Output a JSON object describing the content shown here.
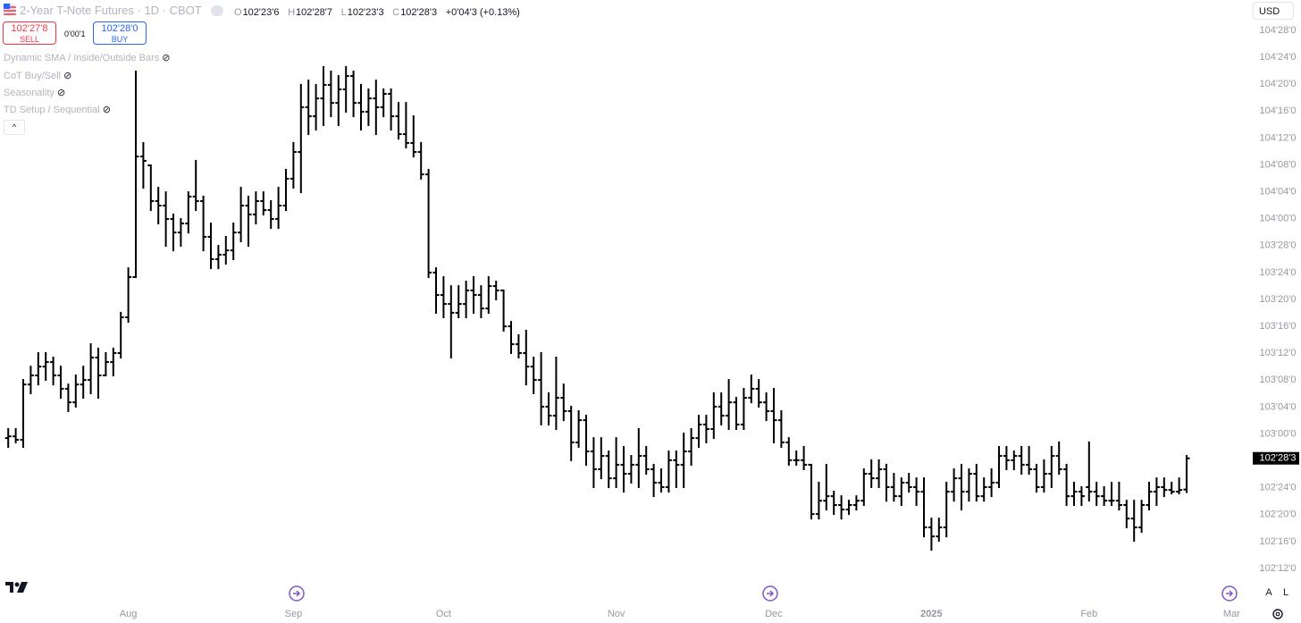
{
  "header": {
    "symbol": "2-Year T-Note Futures · 1D · CBOT",
    "ohlc": [
      [
        "O",
        "102'23'6"
      ],
      [
        "H",
        "102'28'7"
      ],
      [
        "L",
        "102'23'3"
      ],
      [
        "C",
        "102'28'3"
      ]
    ],
    "change": "+0'04'3 (+0.13%)",
    "sell_price": "102'27'8",
    "sell": "SELL",
    "spread": "0'00'1",
    "buy_price": "102'28'0",
    "buy": "BUY",
    "indicators": [
      "Dynamic SMA / Inside/Outside Bars",
      "CoT Buy/Sell",
      "Seasonality",
      "TD Setup / Sequential"
    ],
    "currency": "USD",
    "auto": "A",
    "log": "L"
  },
  "chart_data": {
    "type": "ohlc",
    "color": "#000000",
    "grid": false,
    "ylim": [
      102.3,
      105.0
    ],
    "yticks": [
      {
        "value": 104.875,
        "label": "104'28'0"
      },
      {
        "value": 104.75,
        "label": "104'24'0"
      },
      {
        "value": 104.625,
        "label": "104'20'0"
      },
      {
        "value": 104.5,
        "label": "104'16'0"
      },
      {
        "value": 104.375,
        "label": "104'12'0"
      },
      {
        "value": 104.25,
        "label": "104'08'0"
      },
      {
        "value": 104.125,
        "label": "104'04'0"
      },
      {
        "value": 104.0,
        "label": "104'00'0"
      },
      {
        "value": 103.875,
        "label": "103'28'0"
      },
      {
        "value": 103.75,
        "label": "103'24'0"
      },
      {
        "value": 103.625,
        "label": "103'20'0"
      },
      {
        "value": 103.5,
        "label": "103'16'0"
      },
      {
        "value": 103.375,
        "label": "103'12'0"
      },
      {
        "value": 103.25,
        "label": "103'08'0"
      },
      {
        "value": 103.125,
        "label": "103'04'0"
      },
      {
        "value": 103.0,
        "label": "103'00'0"
      },
      {
        "value": 102.875,
        "label": "102'28'0"
      },
      {
        "value": 102.75,
        "label": "102'24'0"
      },
      {
        "value": 102.625,
        "label": "102'20'0"
      },
      {
        "value": 102.5,
        "label": "102'16'0"
      },
      {
        "value": 102.375,
        "label": "102'12'0"
      }
    ],
    "last_price_label": "102'28'3",
    "categories": [
      null,
      null,
      null,
      null,
      null,
      null,
      null,
      null,
      null,
      null,
      null,
      null,
      null,
      null,
      null,
      null,
      "Aug",
      null,
      null,
      null,
      null,
      null,
      null,
      null,
      null,
      null,
      null,
      null,
      null,
      null,
      null,
      null,
      null,
      null,
      null,
      null,
      null,
      null,
      "Sep",
      null,
      null,
      null,
      null,
      null,
      null,
      null,
      null,
      null,
      null,
      null,
      null,
      null,
      null,
      null,
      null,
      null,
      null,
      null,
      "Oct",
      null,
      null,
      null,
      null,
      null,
      null,
      null,
      null,
      null,
      null,
      null,
      null,
      null,
      null,
      null,
      null,
      null,
      null,
      null,
      null,
      null,
      null,
      "Nov",
      null,
      null,
      null,
      null,
      null,
      null,
      null,
      null,
      null,
      null,
      null,
      null,
      null,
      null,
      null,
      null,
      null,
      null,
      null,
      null,
      "Dec",
      null,
      null,
      null,
      null,
      null,
      null,
      null,
      null,
      null,
      null,
      null,
      null,
      null,
      null,
      null,
      null,
      null,
      null,
      null,
      null,
      "2025",
      null,
      null,
      null,
      null,
      null,
      null,
      null,
      null,
      null,
      null,
      null,
      null,
      null,
      null,
      null,
      null,
      null,
      null,
      null,
      null,
      "Feb",
      null,
      null,
      null,
      null,
      null,
      null,
      null,
      null,
      null,
      null,
      null,
      null,
      null,
      null,
      null,
      null,
      null,
      null,
      "Mar"
    ],
    "values": [
      [
        102.981,
        103.023,
        102.94,
        102.989
      ],
      [
        102.989,
        103.023,
        102.961,
        102.973
      ],
      [
        102.973,
        103.251,
        102.94,
        103.23
      ],
      [
        103.23,
        103.313,
        103.189,
        103.272
      ],
      [
        103.272,
        103.376,
        103.23,
        103.313
      ],
      [
        103.313,
        103.376,
        103.251,
        103.334
      ],
      [
        103.334,
        103.355,
        103.23,
        103.272
      ],
      [
        103.272,
        103.313,
        103.168,
        103.21
      ],
      [
        103.21,
        103.23,
        103.106,
        103.147
      ],
      [
        103.147,
        103.272,
        103.127,
        103.23
      ],
      [
        103.23,
        103.313,
        103.168,
        103.251
      ],
      [
        103.251,
        103.417,
        103.189,
        103.355
      ],
      [
        103.355,
        103.397,
        103.168,
        103.272
      ],
      [
        103.272,
        103.376,
        103.272,
        103.334
      ],
      [
        103.334,
        103.397,
        103.272,
        103.376
      ],
      [
        103.376,
        103.563,
        103.355,
        103.542
      ],
      [
        103.542,
        103.77,
        103.521,
        103.729
      ],
      [
        103.729,
        104.684,
        103.729,
        104.289
      ],
      [
        104.289,
        104.352,
        104.144,
        104.269
      ],
      [
        104.248,
        104.248,
        104.04,
        104.082
      ],
      [
        104.082,
        104.144,
        103.978,
        104.061
      ],
      [
        104.061,
        104.123,
        103.874,
        103.999
      ],
      [
        103.999,
        104.02,
        103.853,
        103.936
      ],
      [
        103.936,
        103.999,
        103.874,
        103.978
      ],
      [
        103.978,
        104.123,
        103.936,
        104.103
      ],
      [
        104.103,
        104.269,
        104.04,
        104.082
      ],
      [
        104.082,
        104.103,
        103.853,
        103.916
      ],
      [
        103.916,
        103.978,
        103.77,
        103.812
      ],
      [
        103.812,
        103.874,
        103.77,
        103.833
      ],
      [
        103.833,
        103.916,
        103.791,
        103.853
      ],
      [
        103.853,
        103.978,
        103.812,
        103.936
      ],
      [
        103.936,
        104.144,
        103.895,
        104.061
      ],
      [
        104.061,
        104.103,
        103.874,
        104.02
      ],
      [
        104.02,
        104.123,
        103.978,
        104.082
      ],
      [
        104.082,
        104.123,
        104.02,
        104.04
      ],
      [
        104.04,
        104.082,
        103.957,
        103.999
      ],
      [
        103.999,
        104.144,
        103.957,
        104.061
      ],
      [
        104.061,
        104.227,
        104.04,
        104.186
      ],
      [
        104.186,
        104.352,
        104.144,
        104.31
      ],
      [
        104.31,
        104.622,
        104.123,
        104.518
      ],
      [
        104.518,
        104.642,
        104.393,
        104.476
      ],
      [
        104.476,
        104.622,
        104.414,
        104.559
      ],
      [
        104.559,
        104.705,
        104.435,
        104.622
      ],
      [
        104.622,
        104.684,
        104.476,
        104.538
      ],
      [
        104.538,
        104.663,
        104.435,
        104.601
      ],
      [
        104.601,
        104.705,
        104.497,
        104.663
      ],
      [
        104.663,
        104.684,
        104.476,
        104.538
      ],
      [
        104.538,
        104.622,
        104.414,
        104.497
      ],
      [
        104.497,
        104.601,
        104.435,
        104.559
      ],
      [
        104.559,
        104.642,
        104.393,
        104.518
      ],
      [
        104.518,
        104.601,
        104.476,
        104.58
      ],
      [
        104.58,
        104.601,
        104.414,
        104.476
      ],
      [
        104.476,
        104.538,
        104.372,
        104.393
      ],
      [
        104.393,
        104.538,
        104.331,
        104.352
      ],
      [
        104.352,
        104.476,
        104.289,
        104.31
      ],
      [
        104.31,
        104.352,
        104.186,
        104.206
      ],
      [
        104.206,
        104.227,
        103.729,
        103.75
      ],
      [
        103.75,
        103.77,
        103.563,
        103.646
      ],
      [
        103.646,
        103.729,
        103.542,
        103.604
      ],
      [
        103.604,
        103.687,
        103.355,
        103.563
      ],
      [
        103.563,
        103.687,
        103.542,
        103.604
      ],
      [
        103.604,
        103.708,
        103.542,
        103.667
      ],
      [
        103.667,
        103.729,
        103.563,
        103.646
      ],
      [
        103.646,
        103.687,
        103.542,
        103.583
      ],
      [
        103.583,
        103.729,
        103.563,
        103.687
      ],
      [
        103.687,
        103.708,
        103.625,
        103.667
      ],
      [
        103.667,
        103.667,
        103.48,
        103.5
      ],
      [
        103.5,
        103.521,
        103.376,
        103.417
      ],
      [
        103.417,
        103.459,
        103.355,
        103.376
      ],
      [
        103.376,
        103.48,
        103.23,
        103.313
      ],
      [
        103.313,
        103.355,
        103.189,
        103.251
      ],
      [
        103.251,
        103.376,
        103.044,
        103.127
      ],
      [
        103.127,
        103.189,
        103.044,
        103.085
      ],
      [
        103.085,
        103.355,
        103.023,
        103.168
      ],
      [
        103.168,
        103.23,
        103.064,
        103.106
      ],
      [
        103.106,
        103.127,
        102.878,
        102.961
      ],
      [
        102.961,
        103.106,
        102.94,
        103.064
      ],
      [
        103.064,
        103.085,
        102.857,
        102.919
      ],
      [
        102.919,
        102.981,
        102.753,
        102.836
      ],
      [
        102.836,
        102.981,
        102.794,
        102.898
      ],
      [
        102.898,
        102.919,
        102.753,
        102.794
      ],
      [
        102.794,
        102.981,
        102.753,
        102.857
      ],
      [
        102.857,
        102.94,
        102.732,
        102.815
      ],
      [
        102.815,
        102.898,
        102.774,
        102.857
      ],
      [
        102.857,
        103.023,
        102.753,
        102.898
      ],
      [
        102.898,
        102.94,
        102.815,
        102.836
      ],
      [
        102.836,
        102.857,
        102.711,
        102.774
      ],
      [
        102.774,
        102.836,
        102.732,
        102.753
      ],
      [
        102.753,
        102.919,
        102.732,
        102.878
      ],
      [
        102.878,
        102.919,
        102.753,
        102.857
      ],
      [
        102.857,
        103.002,
        102.753,
        102.919
      ],
      [
        102.919,
        103.023,
        102.857,
        102.981
      ],
      [
        102.981,
        103.085,
        102.94,
        103.044
      ],
      [
        103.044,
        103.085,
        102.961,
        103.023
      ],
      [
        103.023,
        103.189,
        102.981,
        103.127
      ],
      [
        103.127,
        103.189,
        103.044,
        103.085
      ],
      [
        103.085,
        103.251,
        103.023,
        103.147
      ],
      [
        103.147,
        103.168,
        103.023,
        103.044
      ],
      [
        103.044,
        103.21,
        103.023,
        103.168
      ],
      [
        103.168,
        103.272,
        103.147,
        103.21
      ],
      [
        103.21,
        103.251,
        103.127,
        103.147
      ],
      [
        103.147,
        103.189,
        103.064,
        103.106
      ],
      [
        103.106,
        103.21,
        102.961,
        103.064
      ],
      [
        103.064,
        103.106,
        102.94,
        102.961
      ],
      [
        102.961,
        102.981,
        102.857,
        102.878
      ],
      [
        102.878,
        102.919,
        102.857,
        102.878
      ],
      [
        102.878,
        102.94,
        102.836,
        102.857
      ],
      [
        102.857,
        102.857,
        102.607,
        102.628
      ],
      [
        102.628,
        102.774,
        102.607,
        102.69
      ],
      [
        102.69,
        102.857,
        102.649,
        102.711
      ],
      [
        102.711,
        102.732,
        102.628,
        102.67
      ],
      [
        102.67,
        102.711,
        102.607,
        102.649
      ],
      [
        102.649,
        102.69,
        102.628,
        102.67
      ],
      [
        102.67,
        102.711,
        102.649,
        102.69
      ],
      [
        102.69,
        102.836,
        102.67,
        102.815
      ],
      [
        102.815,
        102.878,
        102.753,
        102.794
      ],
      [
        102.794,
        102.878,
        102.753,
        102.836
      ],
      [
        102.836,
        102.857,
        102.69,
        102.753
      ],
      [
        102.753,
        102.815,
        102.69,
        102.711
      ],
      [
        102.711,
        102.794,
        102.67,
        102.774
      ],
      [
        102.774,
        102.815,
        102.732,
        102.753
      ],
      [
        102.753,
        102.794,
        102.67,
        102.732
      ],
      [
        102.732,
        102.794,
        102.524,
        102.566
      ],
      [
        102.566,
        102.607,
        102.462,
        102.524
      ],
      [
        102.524,
        102.607,
        102.504,
        102.566
      ],
      [
        102.566,
        102.774,
        102.524,
        102.732
      ],
      [
        102.732,
        102.836,
        102.69,
        102.794
      ],
      [
        102.794,
        102.857,
        102.649,
        102.732
      ],
      [
        102.732,
        102.836,
        102.69,
        102.815
      ],
      [
        102.815,
        102.857,
        102.69,
        102.711
      ],
      [
        102.711,
        102.794,
        102.69,
        102.753
      ],
      [
        102.753,
        102.836,
        102.711,
        102.774
      ],
      [
        102.774,
        102.94,
        102.753,
        102.898
      ],
      [
        102.898,
        102.94,
        102.836,
        102.878
      ],
      [
        102.878,
        102.919,
        102.836,
        102.898
      ],
      [
        102.898,
        102.94,
        102.815,
        102.857
      ],
      [
        102.857,
        102.94,
        102.815,
        102.836
      ],
      [
        102.836,
        102.857,
        102.732,
        102.753
      ],
      [
        102.753,
        102.878,
        102.732,
        102.815
      ],
      [
        102.815,
        102.94,
        102.753,
        102.898
      ],
      [
        102.898,
        102.961,
        102.815,
        102.836
      ],
      [
        102.836,
        102.857,
        102.67,
        102.711
      ],
      [
        102.711,
        102.774,
        102.67,
        102.732
      ],
      [
        102.732,
        102.753,
        102.67,
        102.711
      ],
      [
        102.753,
        102.961,
        102.69,
        102.732
      ],
      [
        102.732,
        102.774,
        102.67,
        102.711
      ],
      [
        102.711,
        102.753,
        102.67,
        102.69
      ],
      [
        102.69,
        102.774,
        102.67,
        102.69
      ],
      [
        102.69,
        102.774,
        102.649,
        102.67
      ],
      [
        102.67,
        102.69,
        102.566,
        102.607
      ],
      [
        102.607,
        102.69,
        102.504,
        102.566
      ],
      [
        102.566,
        102.69,
        102.545,
        102.67
      ],
      [
        102.67,
        102.774,
        102.649,
        102.732
      ],
      [
        102.732,
        102.794,
        102.67,
        102.753
      ],
      [
        102.753,
        102.794,
        102.711,
        102.74
      ],
      [
        102.74,
        102.774,
        102.724,
        102.732
      ],
      [
        102.732,
        102.794,
        102.724,
        102.74
      ],
      [
        102.742,
        102.898,
        102.73,
        102.887
      ],
      null,
      null,
      null,
      null,
      null,
      null
    ]
  }
}
